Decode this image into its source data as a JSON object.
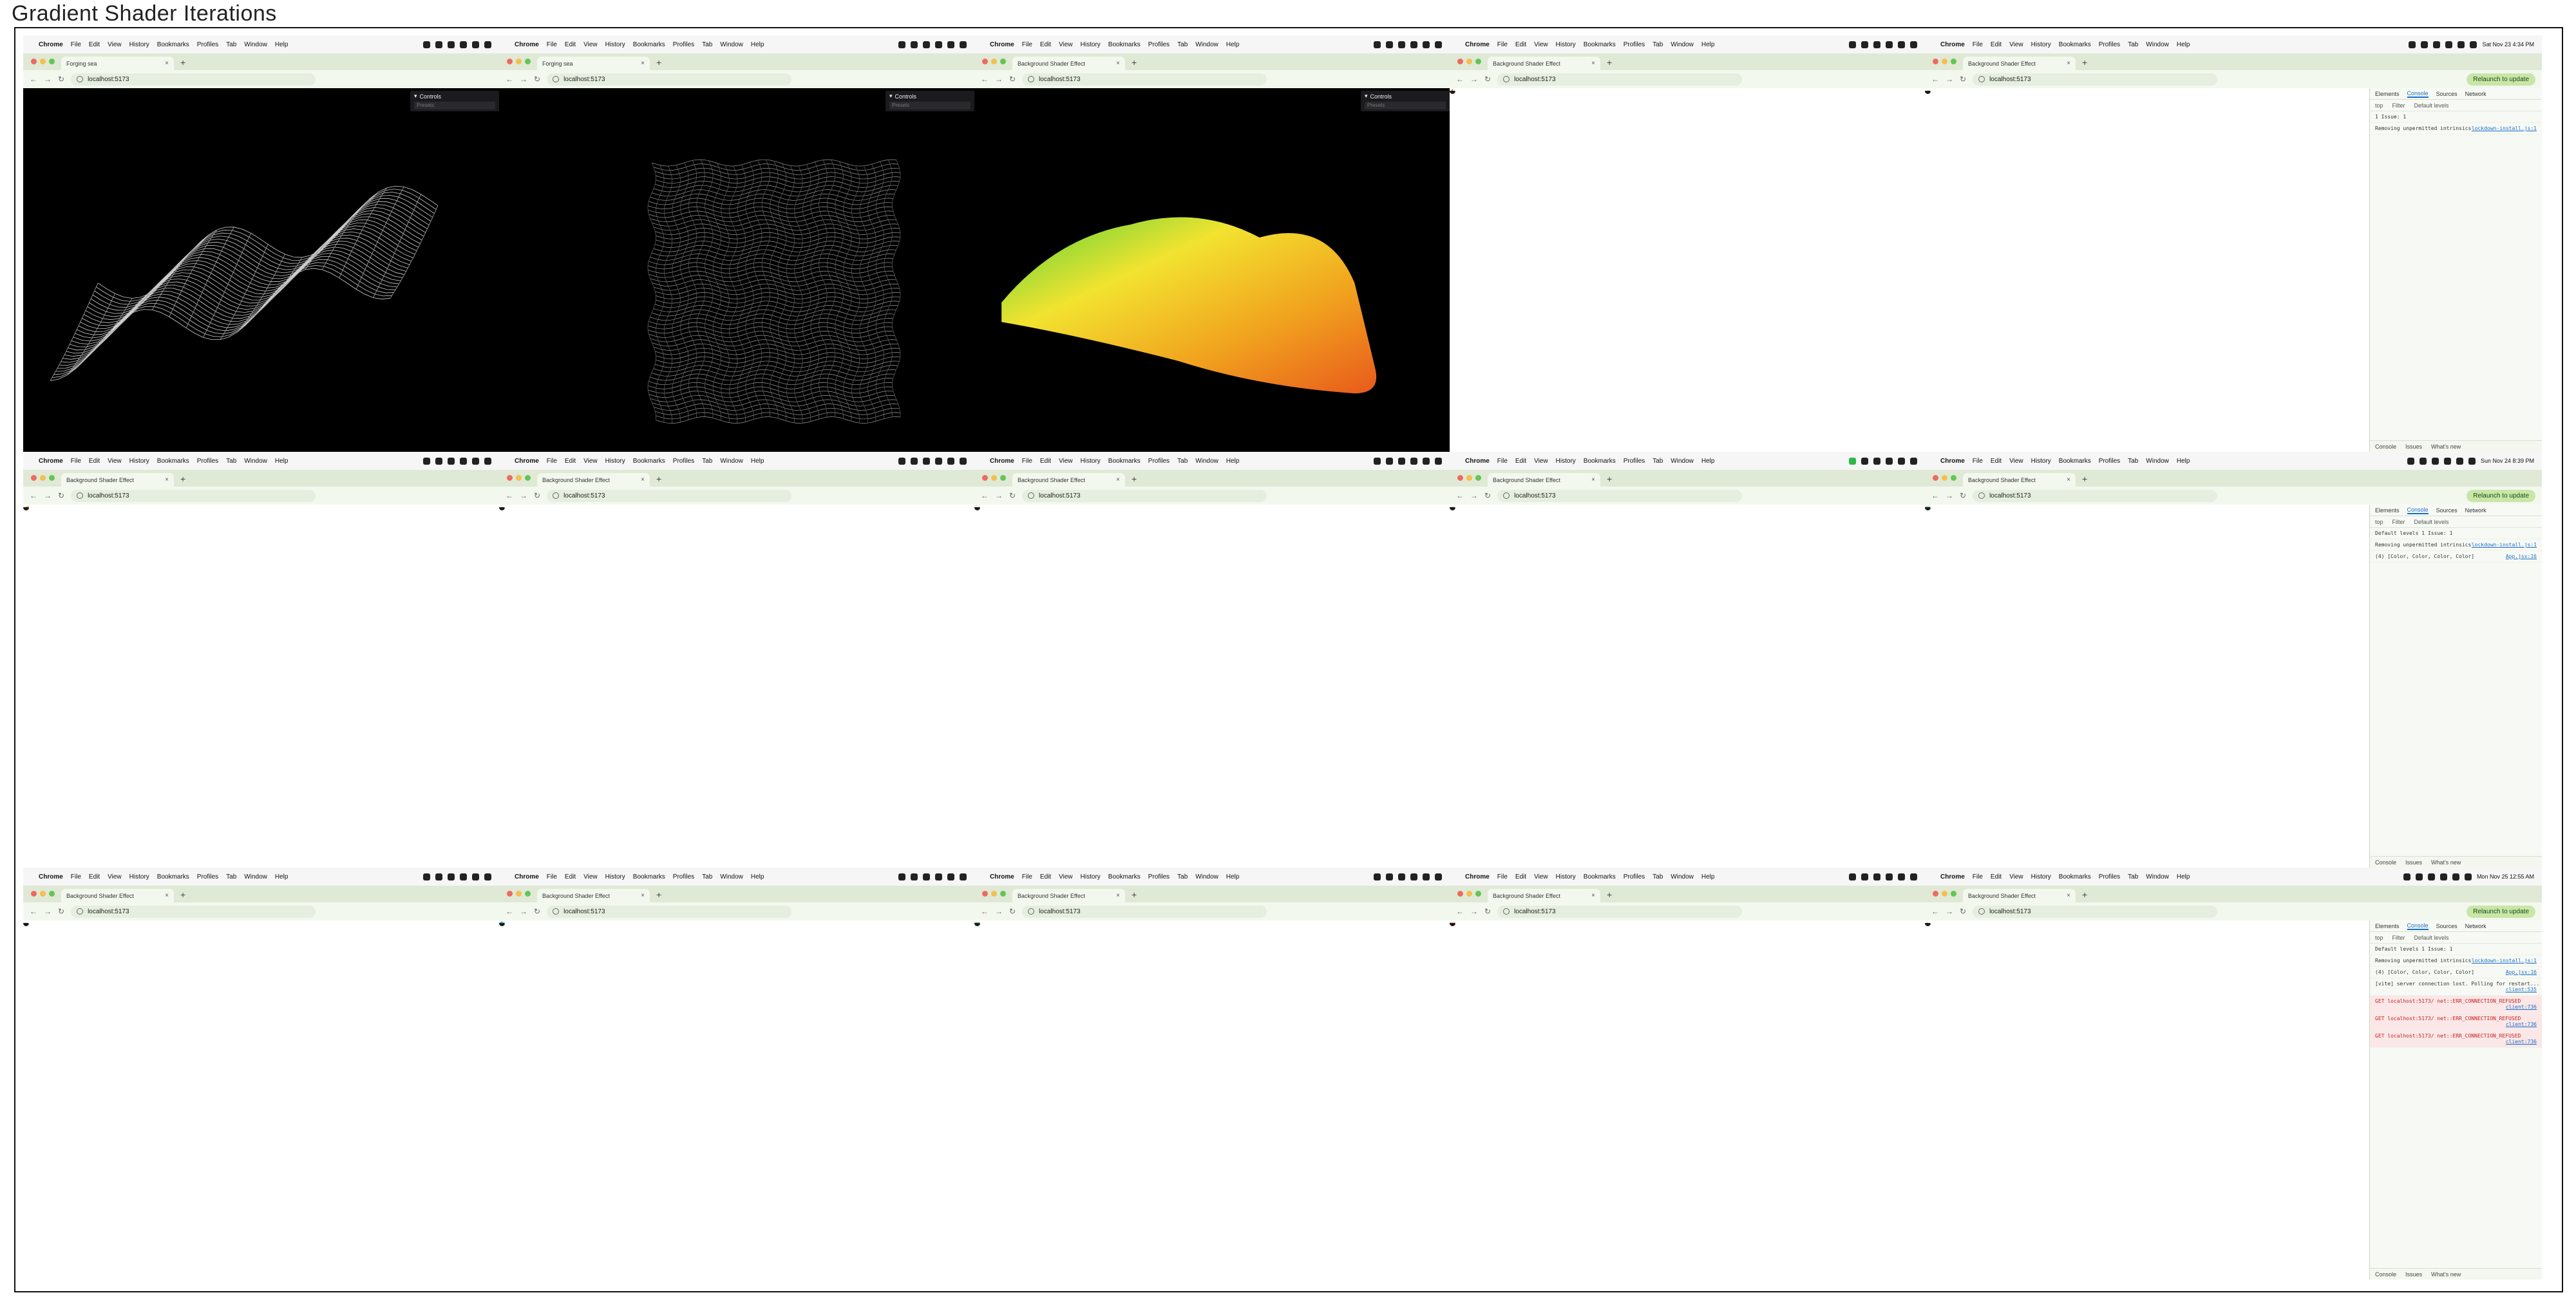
{
  "title": "Gradient Shader Iterations",
  "common": {
    "menu": [
      "File",
      "Edit",
      "View",
      "History",
      "Bookmarks",
      "Profiles",
      "Tab",
      "Window",
      "Help"
    ],
    "app_name": "Chrome",
    "url": "localhost:5173",
    "controls_label": "Controls",
    "controls_sub": "Presets",
    "relaunch_label": "Relaunch to update",
    "close_glyph": "×",
    "new_tab_glyph": "+"
  },
  "screens": [
    {
      "tab": "Forging sea",
      "clock": "",
      "visual": "wire-waves",
      "colors": [
        "#ffffff",
        "#cfcfcf",
        "#9a9a9a"
      ]
    },
    {
      "tab": "Forging sea",
      "clock": "",
      "visual": "wire-flat",
      "colors": [
        "#e8e8e8",
        "#9a9a9a",
        "#5a5a5a"
      ]
    },
    {
      "tab": "Background Shader Effect",
      "clock": "",
      "visual": "ridge",
      "colors": [
        "#4fd23a",
        "#f2e330",
        "#f1a21e",
        "#e85a1c"
      ]
    },
    {
      "tab": "Background Shader Effect",
      "clock": "",
      "visual": "triangle",
      "colors": [
        "#b8ee2a",
        "#f0b018",
        "#e24a16",
        "#30261a"
      ]
    },
    {
      "tab": "Background Shader Effect",
      "clock": "Sat Nov 23 4:34 PM",
      "visual": "ribbon",
      "colors": [
        "#5a6a1a",
        "#d9b222",
        "#e45026"
      ],
      "devtools": {
        "tabs": [
          "Elements",
          "Console",
          "Sources",
          "Network"
        ],
        "filter": [
          "top",
          "Filter",
          "Default levels"
        ],
        "lines": [
          {
            "text": "1 Issue: 1",
            "link": "",
            "kind": "info"
          },
          {
            "text": "Removing unpermitted intrinsics",
            "link": "lockdown-install.js:1",
            "kind": "info"
          }
        ],
        "drawer": [
          "Console",
          "Issues",
          "What's new"
        ]
      }
    },
    {
      "tab": "Background Shader Effect",
      "clock": "",
      "visual": "hills",
      "colors": [
        "#7bd23a",
        "#d4cc36",
        "#e2b12a",
        "#d08a1c"
      ]
    },
    {
      "tab": "Background Shader Effect",
      "clock": "",
      "visual": "blobs",
      "colors": [
        "#ffffff",
        "#e2a04a",
        "#2a3aa0",
        "#c45a1a",
        "#f0e4c4"
      ]
    },
    {
      "tab": "Background Shader Effect",
      "clock": "",
      "visual": "pink",
      "colors": [
        "#ffffff",
        "#f02a8a",
        "#e0a83a",
        "#2a2a8a",
        "#fbe7ef"
      ]
    },
    {
      "tab": "Background Shader Effect",
      "clock": "",
      "visual": "noise",
      "colors": [
        "#f4ead8",
        "#e2b8a8",
        "#3a4a7a",
        "#d8c6b0"
      ]
    },
    {
      "tab": "Background Shader Effect",
      "clock": "Sun Nov 24 8:39 PM",
      "visual": "cyan",
      "colors": [
        "#56e8e8",
        "#ffb0d8",
        "#2a32c8",
        "#f4f07a"
      ],
      "devtools": {
        "tabs": [
          "Elements",
          "Console",
          "Sources",
          "Network"
        ],
        "filter": [
          "top",
          "Filter",
          "Default levels"
        ],
        "lines": [
          {
            "text": "Default levels 1 Issue: 1",
            "link": "",
            "kind": "info"
          },
          {
            "text": "Removing unpermitted intrinsics",
            "link": "lockdown-install.js:1",
            "kind": "info"
          },
          {
            "text": "(4) [Color, Color, Color, Color]",
            "link": "App.jsx:16",
            "kind": "info"
          }
        ],
        "drawer": [
          "Console",
          "Issues",
          "What's new"
        ]
      }
    },
    {
      "tab": "Background Shader Effect",
      "clock": "",
      "visual": "red-white",
      "colors": [
        "#ffffff",
        "#e8242a",
        "#f4c4c8",
        "#1a1a1a"
      ]
    },
    {
      "tab": "Background Shader Effect",
      "clock": "",
      "visual": "cyan-mountains",
      "colors": [
        "#52e4d8",
        "#2a3aa8",
        "#f4e6b4",
        "#c02a8a"
      ]
    },
    {
      "tab": "Background Shader Effect",
      "clock": "",
      "visual": "cream-cyan",
      "colors": [
        "#f6e7b2",
        "#4ee0d4",
        "#c8b84a",
        "#f2d29a"
      ]
    },
    {
      "tab": "Background Shader Effect",
      "clock": "",
      "visual": "orange",
      "colors": [
        "#e88a5a",
        "#f8e6d4",
        "#3a2a2a",
        "#f2b48a"
      ]
    },
    {
      "tab": "Background Shader Effect",
      "clock": "Mon Nov 25 12:55 AM",
      "visual": "red-lime",
      "colors": [
        "#f0f0c0",
        "#e83a3a",
        "#b8e06a",
        "#ffffff"
      ],
      "devtools": {
        "tabs": [
          "Elements",
          "Console",
          "Sources",
          "Network"
        ],
        "filter": [
          "top",
          "Filter",
          "Default levels"
        ],
        "lines": [
          {
            "text": "Default levels 1 Issue: 1",
            "link": "",
            "kind": "info"
          },
          {
            "text": "Removing unpermitted intrinsics",
            "link": "lockdown-install.js:1",
            "kind": "info"
          },
          {
            "text": "(4) [Color, Color, Color, Color]",
            "link": "App.jsx:16",
            "kind": "info"
          },
          {
            "text": "[vite] server connection lost. Polling for restart...",
            "link": "client:535",
            "kind": "info"
          },
          {
            "text": "GET localhost:5173/ net::ERR_CONNECTION_REFUSED",
            "link": "client:736",
            "kind": "err"
          },
          {
            "text": "GET localhost:5173/ net::ERR_CONNECTION_REFUSED",
            "link": "client:736",
            "kind": "err"
          },
          {
            "text": "GET localhost:5173/ net::ERR_CONNECTION_REFUSED",
            "link": "client:736",
            "kind": "err"
          }
        ],
        "drawer": [
          "Console",
          "Issues",
          "What's new"
        ]
      }
    }
  ]
}
